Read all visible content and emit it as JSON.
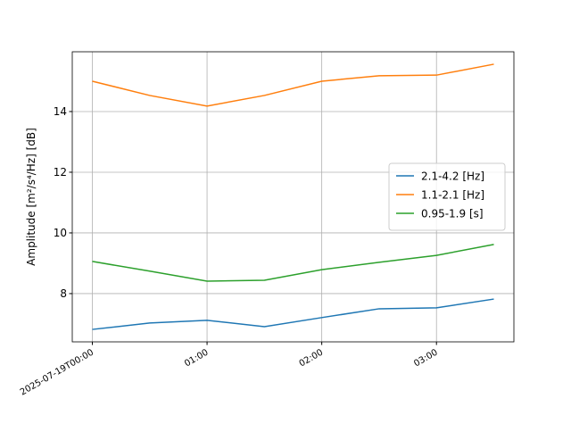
{
  "chart_data": {
    "type": "line",
    "ylabel": "Amplitude [m²/s⁴/Hz] [dB]",
    "x": [
      "2025-07-19T00:00",
      "2025-07-19T00:30",
      "2025-07-19T01:00",
      "2025-07-19T01:30",
      "2025-07-19T02:00",
      "2025-07-19T02:30",
      "2025-07-19T03:00",
      "2025-07-19T03:30"
    ],
    "series": [
      {
        "name": "2.1-4.2 [Hz]",
        "color": "#1f77b4",
        "values": [
          6.82,
          7.03,
          7.12,
          6.91,
          7.21,
          7.5,
          7.53,
          7.82
        ]
      },
      {
        "name": "1.1-2.1 [Hz]",
        "color": "#ff7f0e",
        "values": [
          15.0,
          14.53,
          14.18,
          14.53,
          15.0,
          15.18,
          15.2,
          15.56
        ]
      },
      {
        "name": "0.95-1.9 [s]",
        "color": "#2ca02c",
        "values": [
          9.06,
          8.74,
          8.41,
          8.44,
          8.79,
          9.03,
          9.26,
          9.62
        ]
      }
    ],
    "xlim": [
      "2025-07-18T23:49:30",
      "2025-07-19T03:40:30"
    ],
    "xticks": [
      "2025-07-19T00:00",
      {
        "value": "2025-07-19T01:00",
        "label": "01:00"
      },
      {
        "value": "2025-07-19T02:00",
        "label": "02:00"
      },
      {
        "value": "2025-07-19T03:00",
        "label": "03:00"
      }
    ],
    "ylim": [
      6.41,
      15.97
    ],
    "yticks": [
      8,
      10,
      12,
      14
    ],
    "grid": true,
    "legend": "right"
  }
}
